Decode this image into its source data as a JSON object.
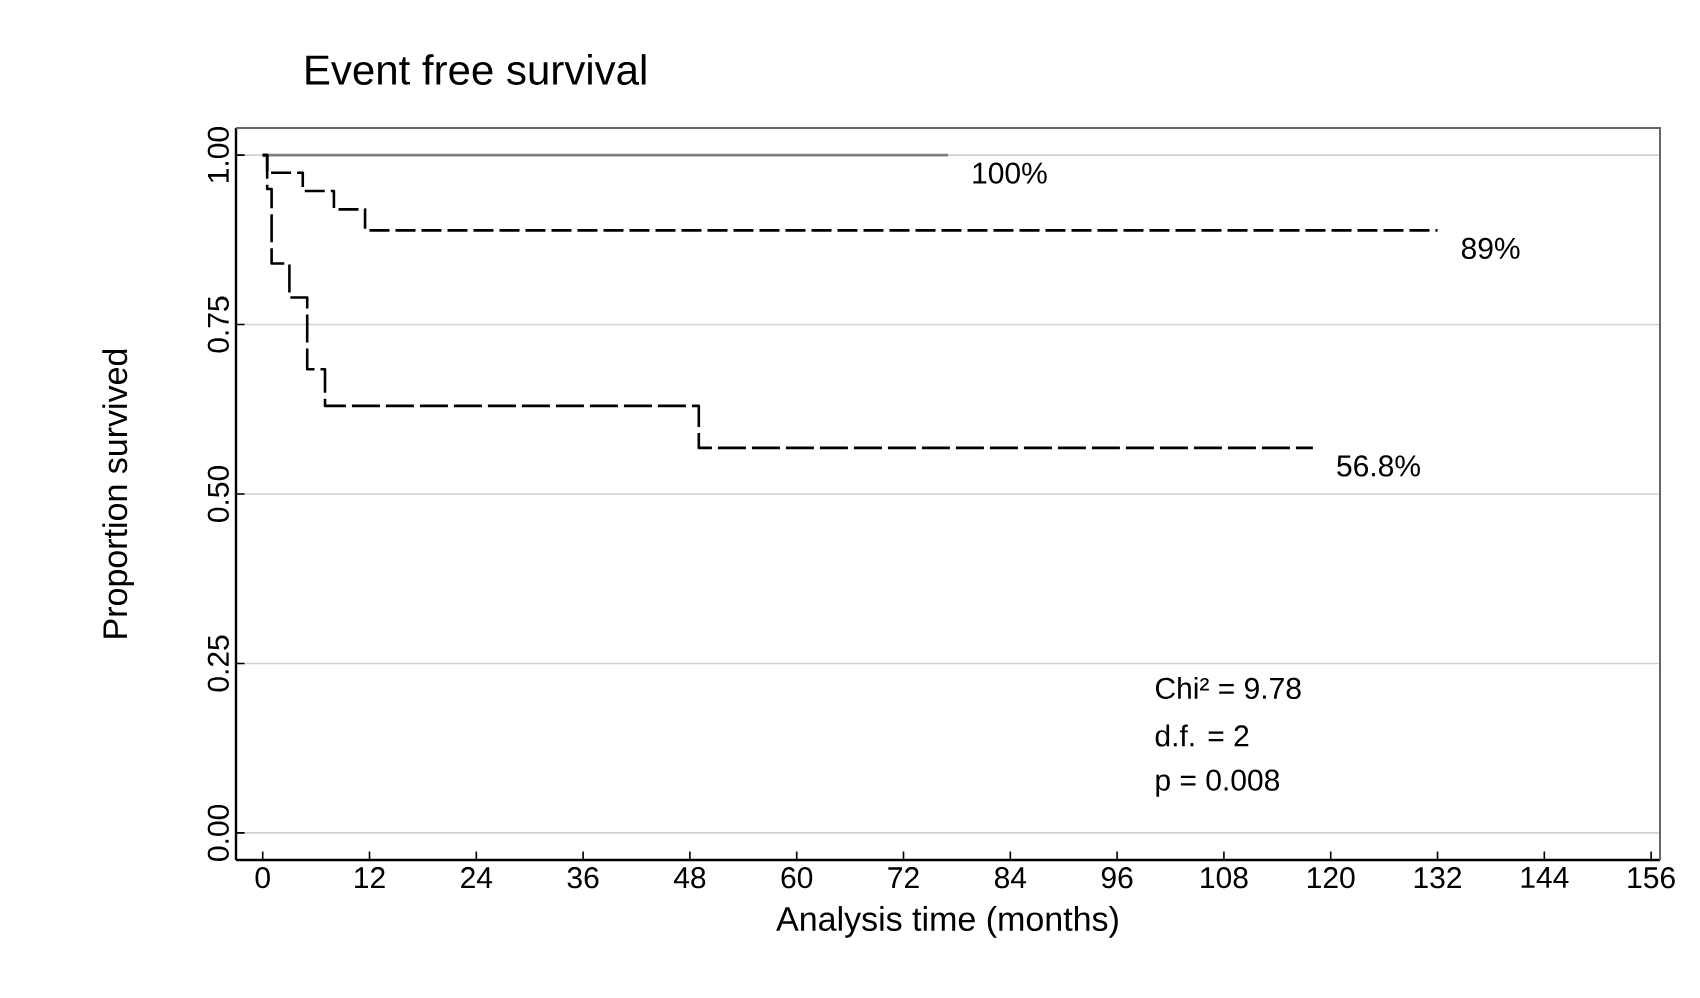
{
  "chart_data": {
    "type": "step",
    "title": "Event free survival",
    "xlabel": "Analysis time (months)",
    "ylabel": "Proportion survived",
    "xlim": [
      -3,
      157
    ],
    "ylim": [
      -0.04,
      1.04
    ],
    "xticks": [
      0,
      12,
      24,
      36,
      48,
      60,
      72,
      84,
      96,
      108,
      120,
      132,
      144,
      156
    ],
    "yticks": [
      {
        "value": 0,
        "label": "0.00"
      },
      {
        "value": 0.25,
        "label": "0.25"
      },
      {
        "value": 0.5,
        "label": "0.50"
      },
      {
        "value": 0.75,
        "label": "0.75"
      },
      {
        "value": 1,
        "label": "1.00"
      }
    ],
    "grid": "y",
    "series": [
      {
        "color": "#808080",
        "line_style": "solid",
        "x": [
          0,
          77
        ],
        "values": [
          1,
          1
        ]
      },
      {
        "color": "#000000",
        "line_style": "dashed",
        "x": [
          0,
          0.5,
          4.5,
          8,
          11.5,
          132
        ],
        "values": [
          1,
          0.974,
          0.947,
          0.92,
          0.889,
          0.889
        ]
      },
      {
        "color": "#000000",
        "line_style": "dashed",
        "x": [
          0,
          0.5,
          1,
          3,
          5,
          7,
          49,
          118
        ],
        "values": [
          1,
          0.95,
          0.84,
          0.79,
          0.684,
          0.63,
          0.568,
          0.568
        ]
      }
    ],
    "annotations": [
      {
        "text": "100%",
        "x": 77,
        "y": 1
      },
      {
        "text": "89%",
        "x": 132,
        "y": 0.889
      },
      {
        "text": "56.8%",
        "x": 118,
        "y": 0.568
      },
      "Chi² = 9.78",
      "d.f. = 2",
      "p = 0.008"
    ]
  }
}
